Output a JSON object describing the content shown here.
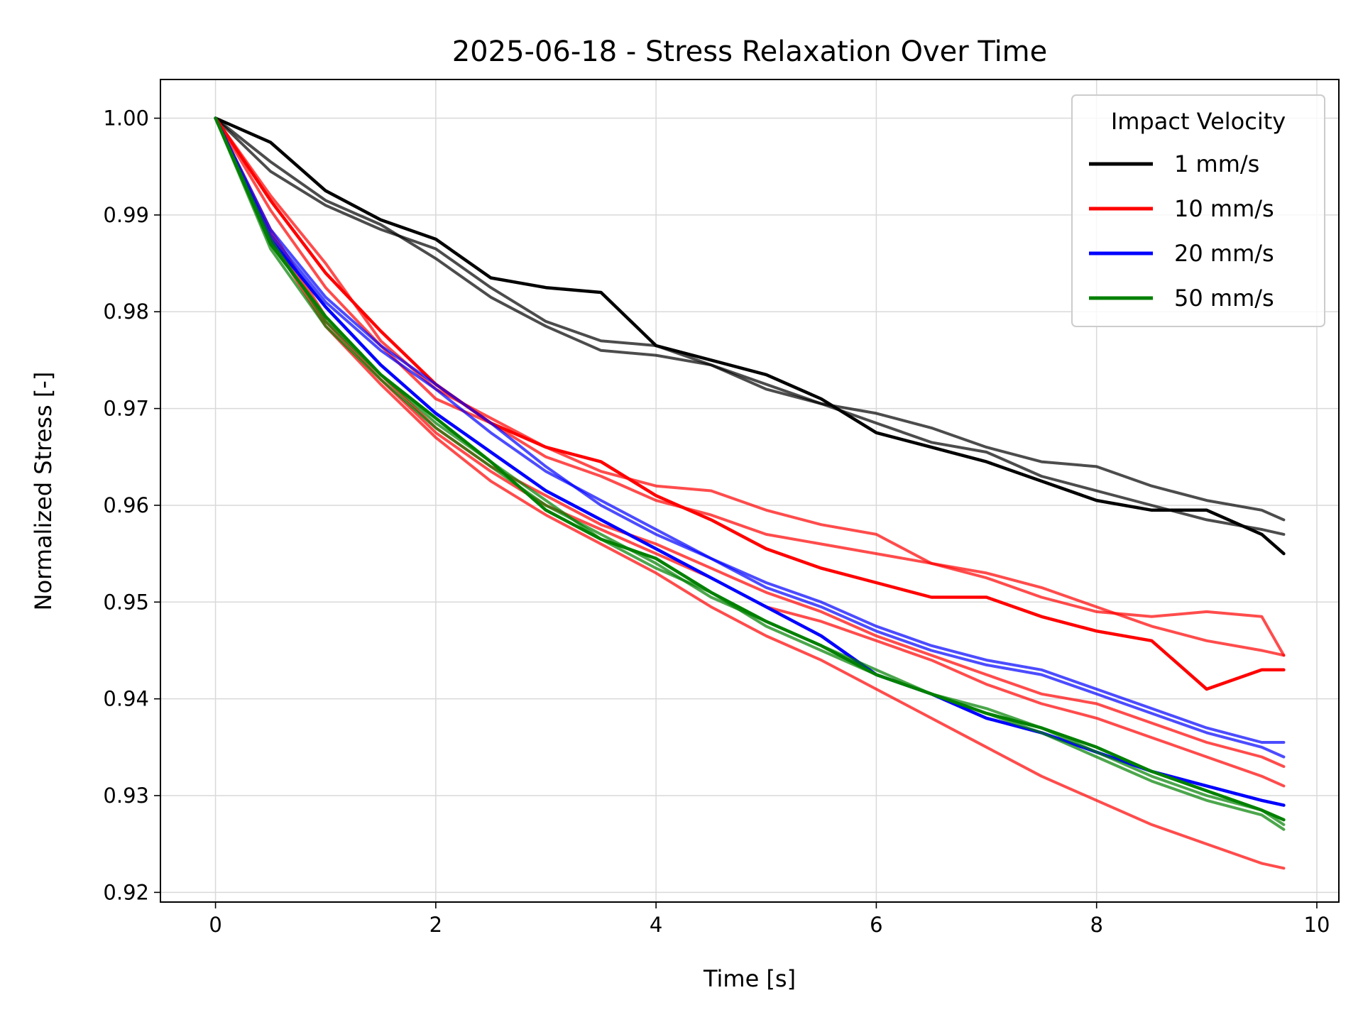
{
  "chart_data": {
    "type": "line",
    "title": "2025-06-18 - Stress Relaxation Over Time",
    "xlabel": "Time [s]",
    "ylabel": "Normalized Stress [-]",
    "xlim": [
      -0.5,
      10.2
    ],
    "ylim": [
      0.919,
      1.004
    ],
    "xticks": [
      0,
      2,
      4,
      6,
      8,
      10
    ],
    "yticks": [
      0.92,
      0.93,
      0.94,
      0.95,
      0.96,
      0.97,
      0.98,
      0.99,
      1.0
    ],
    "ytick_labels": [
      "0.92",
      "0.93",
      "0.94",
      "0.95",
      "0.96",
      "0.97",
      "0.98",
      "0.99",
      "1.00"
    ],
    "grid": true,
    "legend": {
      "title": "Impact Velocity",
      "placement": "top-right",
      "entries": [
        {
          "label": "1 mm/s",
          "color": "#000000"
        },
        {
          "label": "10 mm/s",
          "color": "#ff0000"
        },
        {
          "label": "20 mm/s",
          "color": "#0000ff"
        },
        {
          "label": "50 mm/s",
          "color": "#008000"
        }
      ]
    },
    "series": [
      {
        "group": "1 mm/s",
        "color": "#000000",
        "opacity": 1.0,
        "x": [
          0,
          0.5,
          1.0,
          1.5,
          2.0,
          2.5,
          3.0,
          3.5,
          4.0,
          4.5,
          5.0,
          5.5,
          6.0,
          6.5,
          7.0,
          7.5,
          8.0,
          8.5,
          9.0,
          9.5,
          9.7
        ],
        "y": [
          1.0,
          0.9975,
          0.9925,
          0.9895,
          0.9875,
          0.9835,
          0.9825,
          0.982,
          0.9765,
          0.975,
          0.9735,
          0.971,
          0.9675,
          0.966,
          0.9645,
          0.9625,
          0.9605,
          0.9595,
          0.9595,
          0.957,
          0.955
        ]
      },
      {
        "group": "1 mm/s",
        "color": "#000000",
        "opacity": 0.7,
        "x": [
          0,
          0.5,
          1.0,
          1.5,
          2.0,
          2.5,
          3.0,
          3.5,
          4.0,
          4.5,
          5.0,
          5.5,
          6.0,
          6.5,
          7.0,
          7.5,
          8.0,
          8.5,
          9.0,
          9.5,
          9.7
        ],
        "y": [
          1.0,
          0.9945,
          0.991,
          0.9885,
          0.9865,
          0.9825,
          0.979,
          0.977,
          0.9765,
          0.9745,
          0.9725,
          0.9705,
          0.9695,
          0.968,
          0.966,
          0.9645,
          0.964,
          0.962,
          0.9605,
          0.9595,
          0.9585
        ]
      },
      {
        "group": "1 mm/s",
        "color": "#000000",
        "opacity": 0.7,
        "x": [
          0,
          0.5,
          1.0,
          1.5,
          2.0,
          2.5,
          3.0,
          3.5,
          4.0,
          4.5,
          5.0,
          5.5,
          6.0,
          6.5,
          7.0,
          7.5,
          8.0,
          8.5,
          9.0,
          9.5,
          9.7
        ],
        "y": [
          1.0,
          0.9955,
          0.9915,
          0.989,
          0.9855,
          0.9815,
          0.9785,
          0.976,
          0.9755,
          0.9745,
          0.972,
          0.9705,
          0.9685,
          0.9665,
          0.9655,
          0.963,
          0.9615,
          0.96,
          0.9585,
          0.9575,
          0.957
        ]
      },
      {
        "group": "10 mm/s",
        "color": "#ff0000",
        "opacity": 1.0,
        "x": [
          0,
          0.5,
          1.0,
          1.5,
          2.0,
          2.5,
          3.0,
          3.5,
          4.0,
          4.5,
          5.0,
          5.5,
          6.0,
          6.5,
          7.0,
          7.5,
          8.0,
          8.5,
          9.0,
          9.5,
          9.7
        ],
        "y": [
          1.0,
          0.9915,
          0.984,
          0.978,
          0.9725,
          0.9685,
          0.966,
          0.9645,
          0.961,
          0.9585,
          0.9555,
          0.9535,
          0.952,
          0.9505,
          0.9505,
          0.9485,
          0.947,
          0.946,
          0.941,
          0.943,
          0.943
        ]
      },
      {
        "group": "10 mm/s",
        "color": "#ff0000",
        "opacity": 0.7,
        "x": [
          0,
          0.5,
          1.0,
          1.5,
          2.0,
          2.5,
          3.0,
          3.5,
          4.0,
          4.5,
          5.0,
          5.5,
          6.0,
          6.5,
          7.0,
          7.5,
          8.0,
          8.5,
          9.0,
          9.5,
          9.7
        ],
        "y": [
          1.0,
          0.992,
          0.985,
          0.977,
          0.972,
          0.969,
          0.966,
          0.9635,
          0.962,
          0.9615,
          0.9595,
          0.958,
          0.957,
          0.954,
          0.9525,
          0.9505,
          0.949,
          0.9485,
          0.949,
          0.9485,
          0.9445
        ]
      },
      {
        "group": "10 mm/s",
        "color": "#ff0000",
        "opacity": 0.7,
        "x": [
          0,
          0.5,
          1.0,
          1.5,
          2.0,
          2.5,
          3.0,
          3.5,
          4.0,
          4.5,
          5.0,
          5.5,
          6.0,
          6.5,
          7.0,
          7.5,
          8.0,
          8.5,
          9.0,
          9.5,
          9.7
        ],
        "y": [
          1.0,
          0.9905,
          0.9825,
          0.9765,
          0.971,
          0.9685,
          0.965,
          0.963,
          0.9605,
          0.959,
          0.957,
          0.956,
          0.955,
          0.954,
          0.953,
          0.9515,
          0.9495,
          0.9475,
          0.946,
          0.945,
          0.9445
        ]
      },
      {
        "group": "10 mm/s",
        "color": "#ff0000",
        "opacity": 0.7,
        "x": [
          0,
          0.5,
          1.0,
          1.5,
          2.0,
          2.5,
          3.0,
          3.5,
          4.0,
          4.5,
          5.0,
          5.5,
          6.0,
          6.5,
          7.0,
          7.5,
          8.0,
          8.5,
          9.0,
          9.5,
          9.7
        ],
        "y": [
          1.0,
          0.9885,
          0.9795,
          0.9735,
          0.968,
          0.964,
          0.961,
          0.958,
          0.956,
          0.9535,
          0.951,
          0.949,
          0.9465,
          0.9445,
          0.9425,
          0.9405,
          0.9395,
          0.9375,
          0.9355,
          0.934,
          0.933
        ]
      },
      {
        "group": "10 mm/s",
        "color": "#ff0000",
        "opacity": 0.7,
        "x": [
          0,
          0.5,
          1.0,
          1.5,
          2.0,
          2.5,
          3.0,
          3.5,
          4.0,
          4.5,
          5.0,
          5.5,
          6.0,
          6.5,
          7.0,
          7.5,
          8.0,
          8.5,
          9.0,
          9.5,
          9.7
        ],
        "y": [
          1.0,
          0.988,
          0.979,
          0.973,
          0.9675,
          0.9635,
          0.96,
          0.9575,
          0.955,
          0.9525,
          0.9495,
          0.948,
          0.946,
          0.944,
          0.9415,
          0.9395,
          0.938,
          0.936,
          0.934,
          0.932,
          0.931
        ]
      },
      {
        "group": "10 mm/s",
        "color": "#ff0000",
        "opacity": 0.7,
        "x": [
          0,
          0.5,
          1.0,
          1.5,
          2.0,
          2.5,
          3.0,
          3.5,
          4.0,
          4.5,
          5.0,
          5.5,
          6.0,
          6.5,
          7.0,
          7.5,
          8.0,
          8.5,
          9.0,
          9.5,
          9.7
        ],
        "y": [
          1.0,
          0.9875,
          0.9785,
          0.9725,
          0.967,
          0.9625,
          0.959,
          0.956,
          0.953,
          0.9495,
          0.9465,
          0.944,
          0.941,
          0.938,
          0.935,
          0.932,
          0.9295,
          0.927,
          0.925,
          0.923,
          0.9225
        ]
      },
      {
        "group": "20 mm/s",
        "color": "#0000ff",
        "opacity": 1.0,
        "x": [
          0,
          0.5,
          1.0,
          1.5,
          2.0,
          2.5,
          3.0,
          3.5,
          4.0,
          4.5,
          5.0,
          5.5,
          6.0,
          6.5,
          7.0,
          7.5,
          8.0,
          8.5,
          9.0,
          9.5,
          9.7
        ],
        "y": [
          1.0,
          0.9875,
          0.9805,
          0.9745,
          0.9695,
          0.9655,
          0.9615,
          0.9585,
          0.9555,
          0.9525,
          0.9495,
          0.9465,
          0.9425,
          0.9405,
          0.938,
          0.9365,
          0.9345,
          0.9325,
          0.931,
          0.9295,
          0.929
        ]
      },
      {
        "group": "20 mm/s",
        "color": "#0000ff",
        "opacity": 0.7,
        "x": [
          0,
          0.5,
          1.0,
          1.5,
          2.0,
          2.5,
          3.0,
          3.5,
          4.0,
          4.5,
          5.0,
          5.5,
          6.0,
          6.5,
          7.0,
          7.5,
          8.0,
          8.5,
          9.0,
          9.5,
          9.7
        ],
        "y": [
          1.0,
          0.988,
          0.981,
          0.976,
          0.972,
          0.9675,
          0.9635,
          0.9605,
          0.9575,
          0.9545,
          0.952,
          0.95,
          0.9475,
          0.9455,
          0.944,
          0.943,
          0.941,
          0.939,
          0.937,
          0.9355,
          0.9355
        ]
      },
      {
        "group": "20 mm/s",
        "color": "#0000ff",
        "opacity": 0.7,
        "x": [
          0,
          0.5,
          1.0,
          1.5,
          2.0,
          2.5,
          3.0,
          3.5,
          4.0,
          4.5,
          5.0,
          5.5,
          6.0,
          6.5,
          7.0,
          7.5,
          8.0,
          8.5,
          9.0,
          9.5,
          9.7
        ],
        "y": [
          1.0,
          0.9885,
          0.9815,
          0.9765,
          0.9725,
          0.9685,
          0.964,
          0.96,
          0.957,
          0.9545,
          0.9515,
          0.9495,
          0.947,
          0.945,
          0.9435,
          0.9425,
          0.9405,
          0.9385,
          0.9365,
          0.935,
          0.934
        ]
      },
      {
        "group": "50 mm/s",
        "color": "#008000",
        "opacity": 1.0,
        "x": [
          0,
          0.5,
          1.0,
          1.5,
          2.0,
          2.5,
          3.0,
          3.5,
          4.0,
          4.5,
          5.0,
          5.5,
          6.0,
          6.5,
          7.0,
          7.5,
          8.0,
          8.5,
          9.0,
          9.5,
          9.7
        ],
        "y": [
          1.0,
          0.987,
          0.9795,
          0.9735,
          0.969,
          0.9645,
          0.9595,
          0.9565,
          0.9545,
          0.951,
          0.948,
          0.9455,
          0.9425,
          0.9405,
          0.9385,
          0.937,
          0.935,
          0.9325,
          0.9305,
          0.9285,
          0.9275
        ]
      },
      {
        "group": "50 mm/s",
        "color": "#008000",
        "opacity": 0.7,
        "x": [
          0,
          0.5,
          1.0,
          1.5,
          2.0,
          2.5,
          3.0,
          3.5,
          4.0,
          4.5,
          5.0,
          5.5,
          6.0,
          6.5,
          7.0,
          7.5,
          8.0,
          8.5,
          9.0,
          9.5,
          9.7
        ],
        "y": [
          1.0,
          0.9865,
          0.9785,
          0.973,
          0.968,
          0.964,
          0.96,
          0.957,
          0.954,
          0.9505,
          0.948,
          0.9455,
          0.943,
          0.9405,
          0.939,
          0.937,
          0.9345,
          0.932,
          0.93,
          0.9285,
          0.927
        ]
      },
      {
        "group": "50 mm/s",
        "color": "#008000",
        "opacity": 0.7,
        "x": [
          0,
          0.5,
          1.0,
          1.5,
          2.0,
          2.5,
          3.0,
          3.5,
          4.0,
          4.5,
          5.0,
          5.5,
          6.0,
          6.5,
          7.0,
          7.5,
          8.0,
          8.5,
          9.0,
          9.5,
          9.7
        ],
        "y": [
          1.0,
          0.9875,
          0.979,
          0.9735,
          0.9685,
          0.9645,
          0.9605,
          0.9565,
          0.9535,
          0.951,
          0.9475,
          0.945,
          0.9425,
          0.9405,
          0.9385,
          0.9365,
          0.934,
          0.9315,
          0.9295,
          0.928,
          0.9265
        ]
      }
    ]
  }
}
